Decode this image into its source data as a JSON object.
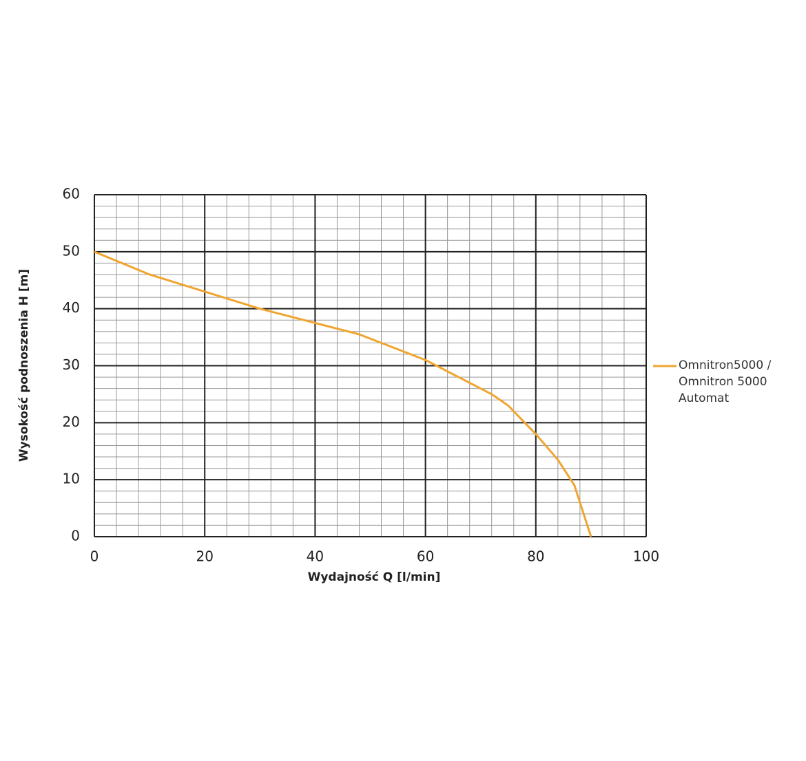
{
  "chart_data": {
    "type": "line",
    "x_label": "Wydajność Q [l/min]",
    "y_label": "Wysokość podnoszenia H [m]",
    "x": [
      0,
      10,
      20,
      30,
      40,
      48,
      52,
      60,
      66,
      72,
      75,
      80,
      84,
      87,
      88,
      90
    ],
    "series": [
      {
        "name": "Omnitron5000 / Omnitron 5000 Automat",
        "color": "#f0a530",
        "values": [
          50,
          46,
          43,
          40,
          37.5,
          35.5,
          34,
          31,
          28,
          25,
          23,
          18,
          13.5,
          9,
          6,
          0
        ]
      }
    ],
    "xlim": [
      0,
      100
    ],
    "xticks": [
      0,
      20,
      40,
      60,
      80,
      100
    ],
    "ylim": [
      0,
      60
    ],
    "yticks": [
      0,
      10,
      20,
      30,
      40,
      50,
      60
    ],
    "grid": true,
    "minor_xstep": 4,
    "minor_ystep": 2,
    "legend": "right"
  }
}
